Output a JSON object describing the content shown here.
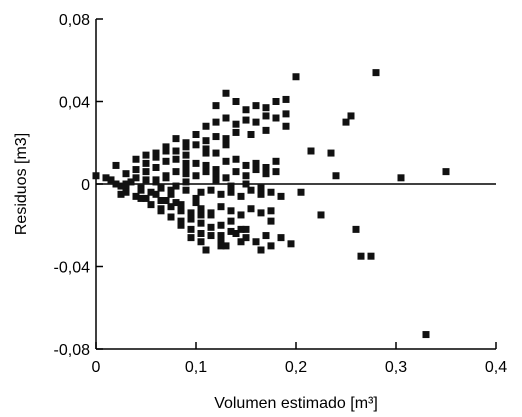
{
  "chart_data": {
    "type": "scatter",
    "title": "",
    "xlabel": "Volumen estimado [m³]",
    "ylabel": "Residuos [m3]",
    "xlim": [
      0,
      0.4
    ],
    "ylim": [
      -0.08,
      0.08
    ],
    "x_ticks": [
      0,
      0.1,
      0.2,
      0.3,
      0.4
    ],
    "x_tick_labels": [
      "0",
      "0,1",
      "0,2",
      "0,3",
      "0,4"
    ],
    "y_ticks": [
      -0.08,
      -0.04,
      0,
      0.04,
      0.08
    ],
    "y_tick_labels": [
      "-0,08",
      "-0,04",
      "0",
      "0,04",
      "0,08"
    ],
    "reference_line_y": 0,
    "grid": false,
    "marker": "square",
    "series": [
      {
        "x": [
          0.0,
          0.01,
          0.015,
          0.02,
          0.025,
          0.03,
          0.035,
          0.04,
          0.045,
          0.05,
          0.055,
          0.06,
          0.065,
          0.07,
          0.075,
          0.08,
          0.02,
          0.03,
          0.04,
          0.05,
          0.06,
          0.07,
          0.08,
          0.09,
          0.03,
          0.04,
          0.05,
          0.06,
          0.07,
          0.08,
          0.09,
          0.1,
          0.04,
          0.05,
          0.06,
          0.07,
          0.08,
          0.09,
          0.055,
          0.065,
          0.075,
          0.085,
          0.095,
          0.1,
          0.105,
          0.06,
          0.07,
          0.08,
          0.09,
          0.1,
          0.11,
          0.12,
          0.13,
          0.065,
          0.075,
          0.085,
          0.095,
          0.105,
          0.115,
          0.125,
          0.135,
          0.08,
          0.09,
          0.1,
          0.11,
          0.12,
          0.13,
          0.14,
          0.085,
          0.095,
          0.105,
          0.115,
          0.125,
          0.135,
          0.145,
          0.09,
          0.1,
          0.11,
          0.12,
          0.13,
          0.14,
          0.15,
          0.16,
          0.17,
          0.18,
          0.095,
          0.105,
          0.115,
          0.125,
          0.14,
          0.15,
          0.16,
          0.17,
          0.1,
          0.11,
          0.12,
          0.13,
          0.14,
          0.15,
          0.16,
          0.17,
          0.18,
          0.105,
          0.115,
          0.125,
          0.135,
          0.145,
          0.155,
          0.165,
          0.175,
          0.11,
          0.12,
          0.13,
          0.14,
          0.15,
          0.16,
          0.17,
          0.18,
          0.19,
          0.115,
          0.125,
          0.135,
          0.145,
          0.155,
          0.165,
          0.175,
          0.185,
          0.12,
          0.13,
          0.14,
          0.15,
          0.16,
          0.17,
          0.18,
          0.19,
          0.125,
          0.145,
          0.165,
          0.175,
          0.185,
          0.195,
          0.03,
          0.045,
          0.06,
          0.075,
          0.09,
          0.105,
          0.12,
          0.135,
          0.15,
          0.165,
          0.025,
          0.045,
          0.065,
          0.085,
          0.11,
          0.13,
          0.15,
          0.175,
          0.05,
          0.07,
          0.09,
          0.11,
          0.13,
          0.155,
          0.17,
          0.19,
          0.2,
          0.205,
          0.215,
          0.225,
          0.235,
          0.24,
          0.25,
          0.255,
          0.26,
          0.265,
          0.275,
          0.28,
          0.305,
          0.33,
          0.35
        ],
        "y": [
          0.004,
          0.003,
          0.002,
          0.0,
          -0.001,
          -0.002,
          0.001,
          0.003,
          -0.003,
          0.002,
          -0.004,
          0.001,
          -0.002,
          0.004,
          -0.005,
          -0.001,
          0.009,
          0.005,
          0.007,
          0.006,
          0.008,
          0.003,
          0.006,
          0.005,
          -0.004,
          -0.006,
          -0.007,
          -0.005,
          -0.008,
          -0.009,
          -0.003,
          -0.007,
          0.012,
          0.01,
          0.013,
          0.011,
          0.012,
          0.01,
          -0.01,
          -0.012,
          -0.011,
          -0.013,
          -0.014,
          -0.009,
          -0.015,
          0.015,
          0.018,
          0.016,
          0.014,
          0.019,
          0.017,
          0.015,
          0.02,
          -0.013,
          -0.016,
          -0.018,
          -0.017,
          -0.019,
          -0.015,
          -0.02,
          -0.018,
          0.022,
          0.018,
          0.024,
          0.021,
          0.023,
          0.019,
          0.025,
          -0.02,
          -0.022,
          -0.024,
          -0.021,
          -0.025,
          -0.023,
          -0.022,
          0.008,
          0.01,
          0.009,
          0.007,
          0.011,
          0.012,
          0.009,
          0.01,
          0.008,
          0.011,
          -0.026,
          -0.028,
          -0.025,
          -0.027,
          -0.024,
          -0.026,
          -0.028,
          -0.025,
          0.004,
          0.006,
          0.005,
          0.003,
          0.006,
          0.004,
          0.007,
          0.005,
          0.006,
          -0.012,
          -0.014,
          -0.011,
          -0.013,
          -0.015,
          -0.012,
          -0.014,
          -0.013,
          0.028,
          0.03,
          0.032,
          0.029,
          0.031,
          0.03,
          0.033,
          0.032,
          0.034,
          -0.003,
          -0.005,
          -0.004,
          -0.006,
          -0.003,
          -0.005,
          -0.004,
          -0.006,
          0.038,
          0.044,
          0.04,
          0.036,
          0.038,
          0.037,
          0.04,
          0.041,
          -0.03,
          -0.028,
          -0.032,
          -0.03,
          -0.026,
          -0.029,
          0.0,
          -0.002,
          0.002,
          -0.003,
          0.001,
          -0.004,
          0.002,
          -0.001,
          0.0,
          -0.002,
          -0.005,
          -0.007,
          -0.008,
          -0.01,
          -0.032,
          -0.03,
          -0.022,
          -0.018,
          0.014,
          0.016,
          0.02,
          0.015,
          0.022,
          0.024,
          0.026,
          0.028,
          0.052,
          -0.004,
          0.016,
          -0.015,
          0.015,
          0.004,
          0.03,
          0.033,
          -0.022,
          -0.035,
          -0.035,
          0.054,
          0.003,
          -0.073,
          0.006
        ]
      }
    ]
  }
}
